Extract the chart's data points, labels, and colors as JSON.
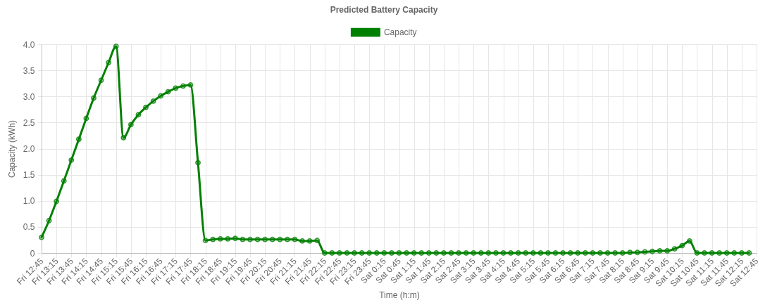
{
  "chart_data": {
    "type": "line",
    "title": "Predicted Battery Capacity",
    "xlabel": "Time (h:m)",
    "ylabel": "Capacity (kWh)",
    "categories": [
      "Fri 12:45",
      null,
      "Fri 13:15",
      null,
      "Fri 13:45",
      null,
      "Fri 14:15",
      null,
      "Fri 14:45",
      null,
      "Fri 15:15",
      null,
      "Fri 15:45",
      null,
      "Fri 16:15",
      null,
      "Fri 16:45",
      null,
      "Fri 17:15",
      null,
      "Fri 17:45",
      null,
      "Fri 18:15",
      null,
      "Fri 18:45",
      null,
      "Fri 19:15",
      null,
      "Fri 19:45",
      null,
      "Fri 20:15",
      null,
      "Fri 20:45",
      null,
      "Fri 21:15",
      null,
      "Fri 21:45",
      null,
      "Fri 22:15",
      null,
      "Fri 22:45",
      null,
      "Fri 23:15",
      null,
      "Fri 23:45",
      null,
      "Sat 0:15",
      null,
      "Sat 0:45",
      null,
      "Sat 1:15",
      null,
      "Sat 1:45",
      null,
      "Sat 2:15",
      null,
      "Sat 2:45",
      null,
      "Sat 3:15",
      null,
      "Sat 3:45",
      null,
      "Sat 4:15",
      null,
      "Sat 4:45",
      null,
      "Sat 5:15",
      null,
      "Sat 5:45",
      null,
      "Sat 6:15",
      null,
      "Sat 6:45",
      null,
      "Sat 7:15",
      null,
      "Sat 7:45",
      null,
      "Sat 8:15",
      null,
      "Sat 8:45",
      null,
      "Sat 9:15",
      null,
      "Sat 9:45",
      null,
      "Sat 10:15",
      null,
      "Sat 10:45",
      null,
      "Sat 11:15",
      null,
      "Sat 11:45",
      null,
      "Sat 12:15",
      null,
      "Sat 12:45"
    ],
    "series": [
      {
        "name": "Capacity",
        "color": "#008000",
        "values": [
          0.3,
          0.62,
          0.99,
          1.38,
          1.78,
          2.18,
          2.58,
          2.97,
          3.31,
          3.65,
          3.96,
          2.21,
          2.46,
          2.65,
          2.79,
          2.91,
          3.01,
          3.09,
          3.16,
          3.2,
          3.22,
          1.73,
          0.24,
          0.26,
          0.27,
          0.27,
          0.28,
          0.26,
          0.26,
          0.26,
          0.26,
          0.26,
          0.26,
          0.26,
          0.26,
          0.23,
          0.23,
          0.24,
          0,
          0,
          0,
          0,
          0,
          0,
          0,
          0,
          0,
          0,
          0,
          0,
          0,
          0,
          0,
          0,
          0,
          0,
          0,
          0,
          0,
          0,
          0,
          0,
          0,
          0,
          0,
          0,
          0,
          0,
          0,
          0,
          0,
          0,
          0,
          0,
          0,
          0,
          0,
          0,
          0,
          0.01,
          0.01,
          0.02,
          0.03,
          0.04,
          0.04,
          0.08,
          0.14,
          0.23,
          0,
          0,
          0,
          0,
          0,
          0,
          0,
          0,
          null
        ]
      }
    ],
    "ylim": [
      0,
      4
    ],
    "yticks": [
      0,
      0.5,
      {
        "value": 1,
        "label": "1.0"
      },
      1.5,
      {
        "value": 2,
        "label": "2.0"
      },
      2.5,
      {
        "value": 3,
        "label": "3.0"
      },
      3.5,
      {
        "value": 4,
        "label": "4.0"
      }
    ],
    "grid": true,
    "legend": "top",
    "marker": "circle",
    "line_style": "solid"
  }
}
